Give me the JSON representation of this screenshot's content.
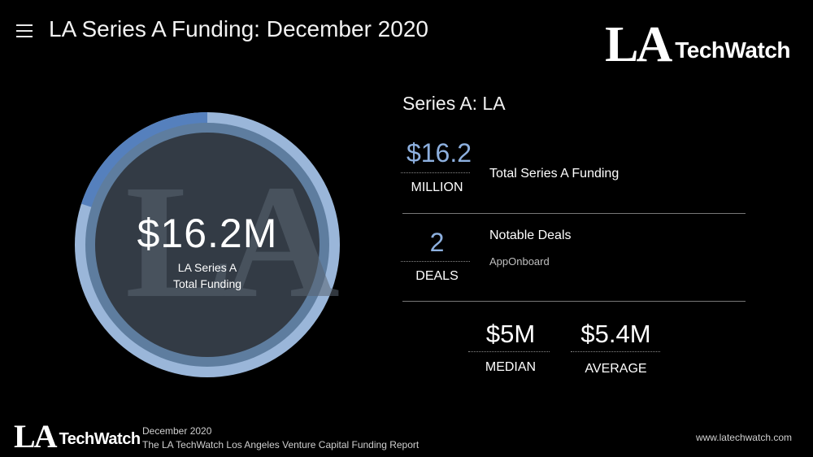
{
  "header": {
    "title": "LA Series A Funding: December 2020",
    "logo_la": "LA",
    "logo_techwatch": "TechWatch"
  },
  "donut": {
    "amount": "$16.2M",
    "label_line1": "LA Series A",
    "label_line2": "Total Funding",
    "watermark": "LA",
    "highlight_fraction": 0.2,
    "colors": {
      "outer_ring": "#9ab6d9",
      "highlight": "#5580bd",
      "inner_ring": "#5e7d9f",
      "center": "#333b45"
    }
  },
  "stats": {
    "section_title": "Series A: LA",
    "total": {
      "value": "$16.2",
      "unit": "MILLION",
      "description": "Total Series A Funding"
    },
    "deals": {
      "value": "2",
      "unit": "DEALS",
      "description": "Notable Deals",
      "company": "AppOnboard"
    },
    "median": {
      "value": "$5M",
      "label": "MEDIAN"
    },
    "average": {
      "value": "$5.4M",
      "label": "AVERAGE"
    }
  },
  "footer": {
    "logo_la": "LA",
    "logo_techwatch": "TechWatch",
    "date": "December 2020",
    "report": "The LA TechWatch Los Angeles Venture Capital Funding Report",
    "url": "www.latechwatch.com"
  }
}
